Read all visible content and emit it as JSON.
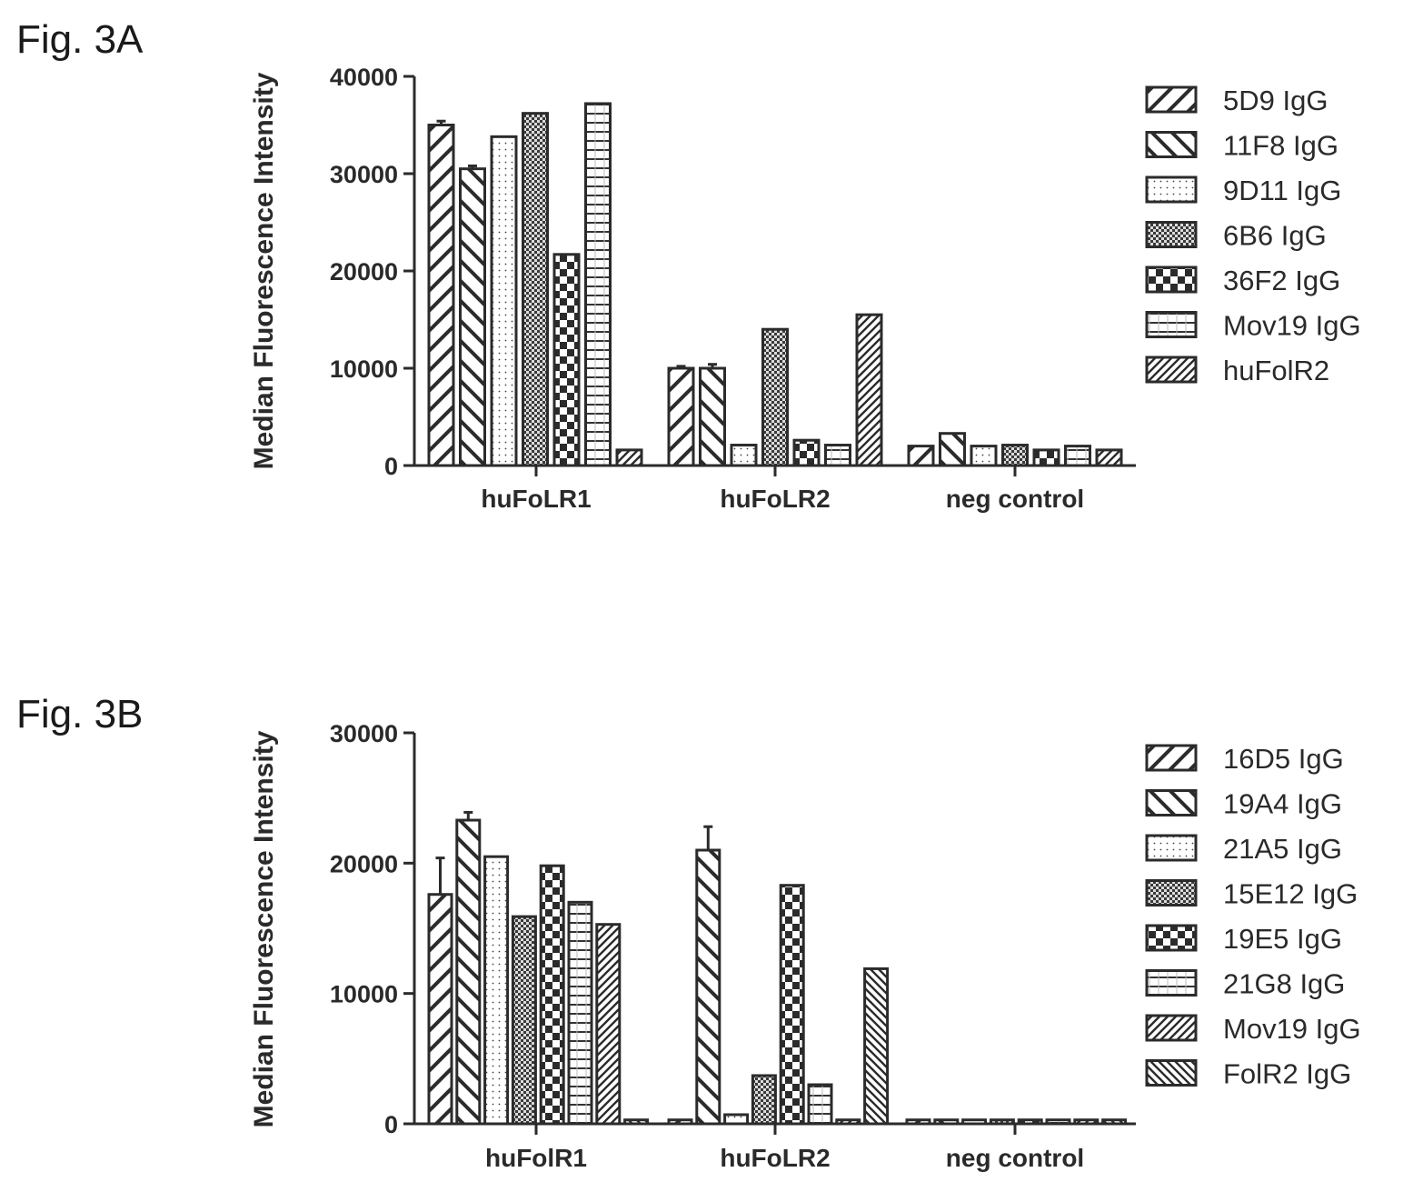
{
  "chart_data": [
    {
      "type": "bar",
      "panel_label": "Fig. 3A",
      "ylabel": "Median Fluorescence Intensity",
      "ylim": [
        0,
        40000
      ],
      "yticks": [
        0,
        10000,
        20000,
        30000,
        40000
      ],
      "categories": [
        "huFoLR1",
        "huFoLR2",
        "neg control"
      ],
      "legend_position": "right",
      "series": [
        {
          "name": "5D9 IgG",
          "pattern": "diag-up",
          "values": [
            35000,
            10000,
            2000
          ],
          "errors": [
            400,
            200,
            0
          ]
        },
        {
          "name": "11F8 IgG",
          "pattern": "diag-down",
          "values": [
            30500,
            10000,
            3300
          ],
          "errors": [
            300,
            400,
            0
          ]
        },
        {
          "name": "9D11 IgG",
          "pattern": "dots",
          "values": [
            33800,
            2100,
            2000
          ],
          "errors": [
            0,
            0,
            0
          ]
        },
        {
          "name": "6B6 IgG",
          "pattern": "crosshatch",
          "values": [
            36200,
            14000,
            2100
          ],
          "errors": [
            0,
            0,
            0
          ]
        },
        {
          "name": "36F2 IgG",
          "pattern": "checker",
          "values": [
            21700,
            2600,
            1600
          ],
          "errors": [
            0,
            0,
            0
          ]
        },
        {
          "name": "Mov19 IgG",
          "pattern": "hlines",
          "values": [
            37200,
            2100,
            2000
          ],
          "errors": [
            0,
            0,
            0
          ]
        },
        {
          "name": "huFolR2",
          "pattern": "diag-up-dense",
          "values": [
            1600,
            15500,
            1600
          ],
          "errors": [
            0,
            0,
            0
          ]
        }
      ]
    },
    {
      "type": "bar",
      "panel_label": "Fig. 3B",
      "ylabel": "Median Fluorescence Intensity",
      "ylim": [
        0,
        30000
      ],
      "yticks": [
        0,
        10000,
        20000,
        30000
      ],
      "categories": [
        "huFolR1",
        "huFoLR2",
        "neg control"
      ],
      "legend_position": "right",
      "series": [
        {
          "name": "16D5 IgG",
          "pattern": "diag-up",
          "values": [
            17600,
            300,
            300
          ],
          "errors": [
            2800,
            0,
            0
          ]
        },
        {
          "name": "19A4 IgG",
          "pattern": "diag-down",
          "values": [
            23300,
            21000,
            300
          ],
          "errors": [
            600,
            1800,
            0
          ]
        },
        {
          "name": "21A5 IgG",
          "pattern": "dots",
          "values": [
            20500,
            700,
            300
          ],
          "errors": [
            0,
            0,
            0
          ]
        },
        {
          "name": "15E12 IgG",
          "pattern": "crosshatch",
          "values": [
            15900,
            3700,
            300
          ],
          "errors": [
            0,
            0,
            0
          ]
        },
        {
          "name": "19E5 IgG",
          "pattern": "checker",
          "values": [
            19800,
            18300,
            300
          ],
          "errors": [
            0,
            0,
            0
          ]
        },
        {
          "name": "21G8 IgG",
          "pattern": "hlines",
          "values": [
            17000,
            3000,
            300
          ],
          "errors": [
            0,
            0,
            0
          ]
        },
        {
          "name": "Mov19 IgG",
          "pattern": "diag-up-dense",
          "values": [
            15300,
            300,
            300
          ],
          "errors": [
            0,
            0,
            0
          ]
        },
        {
          "name": "FolR2 IgG",
          "pattern": "diag-down-dense",
          "values": [
            300,
            11900,
            300
          ],
          "errors": [
            0,
            0,
            0
          ]
        }
      ]
    }
  ]
}
